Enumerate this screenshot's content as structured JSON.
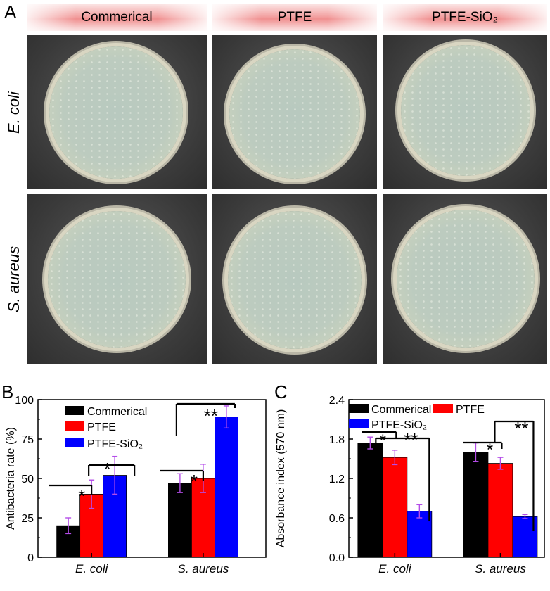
{
  "panel_a": {
    "letter": "A",
    "columns": [
      "Commerical",
      "PTFE",
      "PTFE-SiO₂"
    ],
    "rows": [
      "E. coli",
      "S. aureus"
    ]
  },
  "chart_data": [
    {
      "panel": "B",
      "type": "bar",
      "categories": [
        "E. coli",
        "S. aureus"
      ],
      "series": [
        {
          "name": "Commerical",
          "color": "#000000",
          "values": [
            20,
            47
          ],
          "errors": [
            5,
            6
          ]
        },
        {
          "name": "PTFE",
          "color": "#ff0000",
          "values": [
            40,
            50
          ],
          "errors": [
            9,
            9
          ]
        },
        {
          "name": "PTFE-SiO₂",
          "color": "#0000ff",
          "values": [
            52,
            89
          ],
          "errors": [
            12,
            7
          ]
        }
      ],
      "ylabel": "Antibacteria rate (%)",
      "ylim": [
        0,
        100
      ],
      "yticks": [
        "0",
        "25",
        "50",
        "75",
        "100"
      ],
      "legend": "top-left",
      "annotations": [
        "*",
        "*",
        "*",
        "**"
      ]
    },
    {
      "panel": "C",
      "type": "bar",
      "categories": [
        "E. coli",
        "S. aureus"
      ],
      "series": [
        {
          "name": "Commerical",
          "color": "#000000",
          "values": [
            1.74,
            1.6
          ],
          "errors": [
            0.09,
            0.14
          ]
        },
        {
          "name": "PTFE",
          "color": "#ff0000",
          "values": [
            1.52,
            1.43
          ],
          "errors": [
            0.11,
            0.09
          ]
        },
        {
          "name": "PTFE-SiO₂",
          "color": "#0000ff",
          "values": [
            0.7,
            0.62
          ],
          "errors": [
            0.1,
            0.03
          ]
        }
      ],
      "ylabel": "Absorbance index (570 nm)",
      "ylim": [
        0,
        2.4
      ],
      "yticks": [
        "0.0",
        "0.6",
        "1.2",
        "1.8",
        "2.4"
      ],
      "legend": "top",
      "annotations": [
        "*",
        "**",
        "*",
        "**"
      ]
    }
  ]
}
